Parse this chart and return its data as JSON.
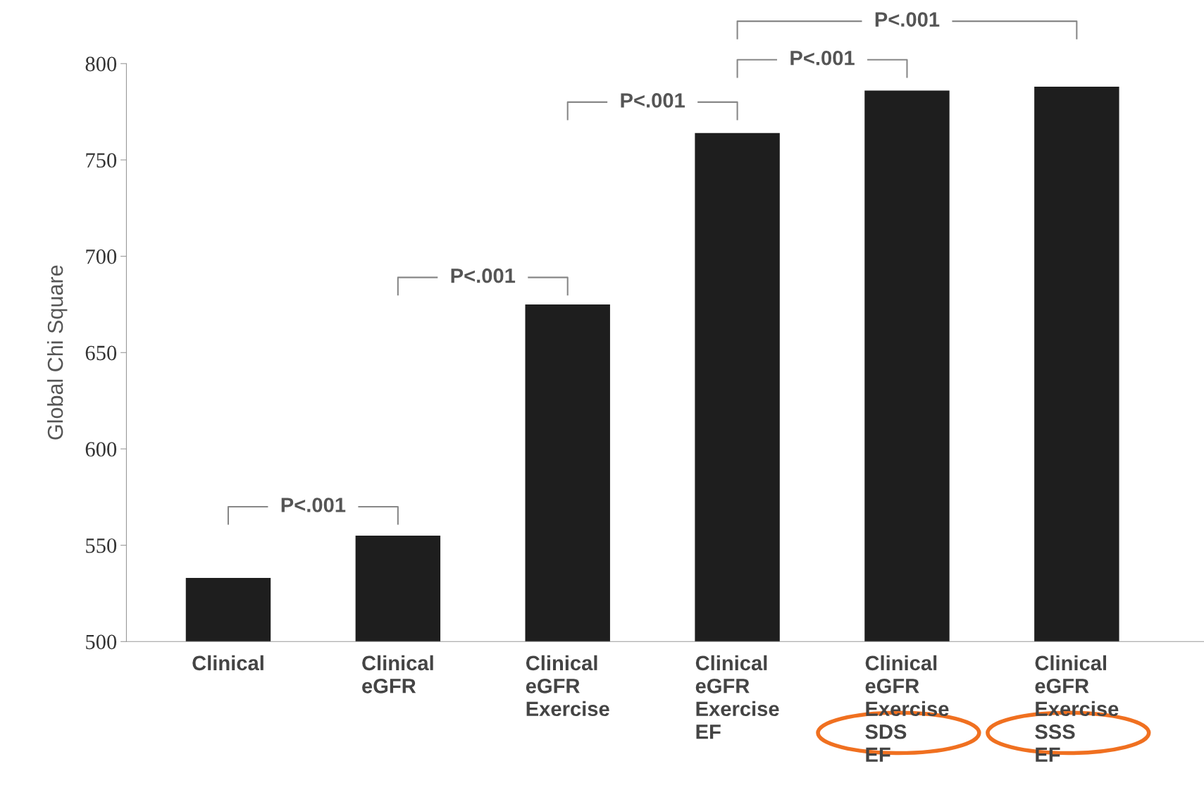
{
  "chart_data": {
    "type": "bar",
    "ylabel": "Global Chi Square",
    "categories": [
      "Clinical",
      "Clinical\neGFR",
      "Clinical\neGFR\nExercise",
      "Clinical\neGFR\nExercise\nEF",
      "Clinical\neGFR\nExercise\nSDS\nEF",
      "Clinical\neGFR\nExercise\nSSS\nEF"
    ],
    "values": [
      533,
      555,
      675,
      764,
      786,
      788
    ],
    "color": "#1e1e1e",
    "ylim": [
      500,
      800
    ],
    "yticks": [
      500,
      550,
      600,
      650,
      700,
      750,
      800
    ],
    "annotations": [
      "P<.001",
      "P<.001",
      "P<.001",
      "P<.001",
      "P<.001"
    ]
  }
}
